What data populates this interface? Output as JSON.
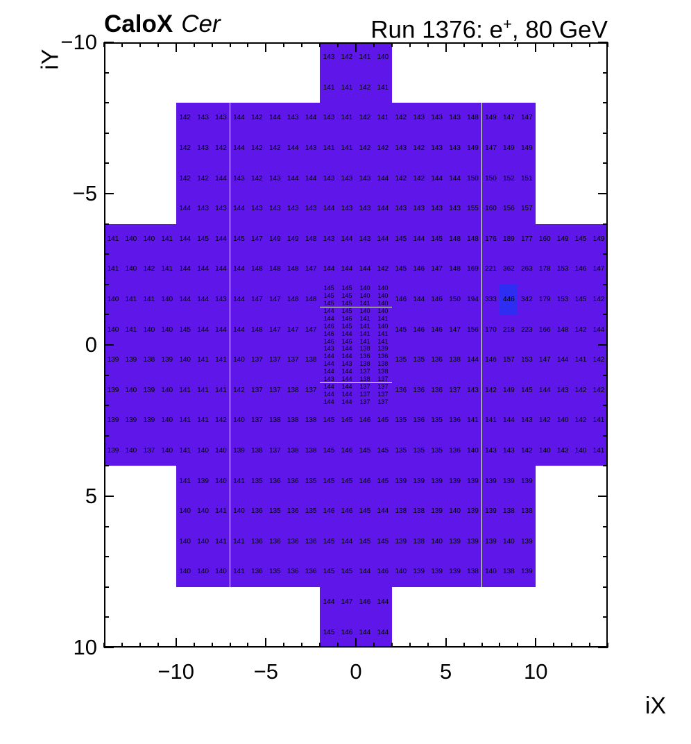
{
  "header": {
    "title_bold": "CaloX",
    "title_italic": "Cer",
    "run_prefix": "Run 1376: e",
    "run_sup": "+",
    "run_suffix": ", 80 GeV"
  },
  "chart_data": {
    "type": "heatmap",
    "title": "CaloX Cer",
    "subtitle": "Run 1376: e+, 80 GeV",
    "xlabel": "iX",
    "ylabel": "iY",
    "xlim": [
      -14,
      14
    ],
    "ylim": [
      -10,
      10
    ],
    "grid": false,
    "xticks": [
      -10,
      -5,
      0,
      5,
      10
    ],
    "yticks": [
      -10,
      -5,
      0,
      5,
      10
    ],
    "xtick_labels": [
      "−10",
      "−5",
      "0",
      "5",
      "10"
    ],
    "ytick_labels": [
      "10",
      "5",
      "0",
      "−5",
      "−10"
    ],
    "palette": {
      "base": "#5e17e8",
      "hot": "#2e2ef2",
      "hot_threshold": 400
    },
    "layers": [
      {
        "name": "top-cross",
        "x0": -2,
        "y_top": 10,
        "cell_w": 1,
        "cell_h": 1,
        "rows": [
          [
            143,
            142,
            141,
            140
          ],
          [
            141,
            141,
            142,
            141
          ]
        ]
      },
      {
        "name": "upper-block",
        "x0": -10,
        "y_top": 8,
        "cell_w": 1,
        "cell_h": 1,
        "rows": [
          [
            142,
            143,
            143,
            144,
            142,
            144,
            143,
            144,
            143,
            141,
            142,
            141,
            142,
            143,
            143,
            143,
            148,
            149,
            147,
            147
          ],
          [
            142,
            143,
            142,
            144,
            142,
            142,
            144,
            143,
            141,
            141,
            142,
            142,
            143,
            142,
            143,
            143,
            149,
            147,
            149,
            149
          ],
          [
            142,
            142,
            144,
            143,
            142,
            143,
            144,
            144,
            143,
            143,
            143,
            144,
            142,
            142,
            144,
            144,
            150,
            150,
            152,
            151
          ],
          [
            144,
            143,
            143,
            144,
            143,
            143,
            143,
            143,
            144,
            143,
            143,
            144,
            143,
            143,
            143,
            143,
            155,
            160,
            156,
            157
          ]
        ]
      },
      {
        "name": "upper-wide",
        "x0": -14,
        "y_top": 4,
        "cell_w": 1,
        "cell_h": 1,
        "rows": [
          [
            141,
            140,
            140,
            141,
            144,
            145,
            144,
            145,
            147,
            149,
            149,
            148,
            143,
            144,
            143,
            144,
            145,
            144,
            145,
            148,
            148,
            176,
            189,
            177,
            160,
            149,
            145,
            149
          ],
          [
            141,
            140,
            142,
            141,
            144,
            144,
            144,
            144,
            148,
            148,
            148,
            147,
            144,
            144,
            144,
            142,
            145,
            146,
            147,
            148,
            169,
            221,
            362,
            263,
            178,
            153,
            146,
            147
          ]
        ]
      },
      {
        "name": "mid-left",
        "x0": -14,
        "y_top": 2,
        "cell_w": 1,
        "cell_h": 1,
        "rows": [
          [
            140,
            141,
            141,
            140,
            144,
            144,
            143,
            144,
            147,
            147,
            148,
            148
          ],
          [
            140,
            141,
            140,
            140,
            145,
            144,
            144,
            144,
            148,
            147,
            147,
            147
          ],
          [
            139,
            139,
            138,
            139,
            140,
            141,
            141,
            140,
            137,
            137,
            137,
            138
          ],
          [
            139,
            140,
            139,
            140,
            141,
            141,
            141,
            142,
            137,
            137,
            138,
            137
          ]
        ]
      },
      {
        "name": "center-fine",
        "x0": -2,
        "y_top": 2,
        "cell_w": 1,
        "cell_h": 0.25,
        "rows": [
          [
            145,
            145,
            140,
            140
          ],
          [
            145,
            145,
            140,
            140
          ],
          [
            145,
            145,
            141,
            140
          ],
          [
            144,
            145,
            140,
            140
          ],
          [
            144,
            146,
            141,
            141
          ],
          [
            146,
            145,
            141,
            140
          ],
          [
            146,
            144,
            141,
            141
          ],
          [
            146,
            146,
            141,
            141
          ],
          [
            143,
            144,
            138,
            139
          ],
          [
            144,
            144,
            136,
            136
          ],
          [
            144,
            143,
            138,
            138
          ],
          [
            144,
            144,
            137,
            138
          ],
          [
            143,
            144,
            138,
            137
          ],
          [
            144,
            144,
            137,
            137
          ],
          [
            144,
            144,
            137,
            137
          ],
          [
            144,
            144,
            137,
            137
          ]
        ]
      },
      {
        "name": "mid-right",
        "x0": 2,
        "y_top": 2,
        "cell_w": 1,
        "cell_h": 1,
        "rows": [
          [
            146,
            144,
            146,
            150,
            194,
            333,
            446,
            342,
            179,
            153,
            145,
            142
          ],
          [
            145,
            146,
            146,
            147,
            156,
            170,
            218,
            223,
            166,
            148,
            142,
            144
          ],
          [
            135,
            135,
            136,
            138,
            144,
            146,
            157,
            153,
            147,
            144,
            141,
            142
          ],
          [
            136,
            136,
            136,
            137,
            143,
            142,
            149,
            145,
            144,
            143,
            142,
            142
          ]
        ]
      },
      {
        "name": "lower-wide",
        "x0": -14,
        "y_top": -2,
        "cell_w": 1,
        "cell_h": 1,
        "rows": [
          [
            139,
            139,
            139,
            140,
            141,
            141,
            142,
            140,
            137,
            138,
            138,
            138,
            145,
            145,
            146,
            145,
            135,
            136,
            135,
            136,
            141,
            141,
            144,
            143,
            142,
            140,
            142,
            141
          ],
          [
            139,
            140,
            137,
            140,
            141,
            140,
            140,
            139,
            138,
            137,
            138,
            138,
            145,
            146,
            145,
            145,
            135,
            135,
            135,
            136,
            140,
            143,
            143,
            142,
            140,
            143,
            140,
            141
          ]
        ]
      },
      {
        "name": "lower-block",
        "x0": -10,
        "y_top": -4,
        "cell_w": 1,
        "cell_h": 1,
        "rows": [
          [
            141,
            139,
            140,
            141,
            135,
            136,
            136,
            135,
            145,
            145,
            146,
            145,
            139,
            139,
            139,
            139,
            139,
            139,
            139,
            139
          ],
          [
            140,
            140,
            141,
            140,
            136,
            135,
            136,
            135,
            146,
            146,
            145,
            144,
            138,
            138,
            139,
            140,
            139,
            139,
            138,
            138
          ],
          [
            140,
            140,
            141,
            141,
            136,
            136,
            136,
            136,
            145,
            144,
            145,
            145,
            139,
            138,
            140,
            139,
            139,
            139,
            140,
            139
          ],
          [
            140,
            140,
            140,
            141,
            136,
            135,
            136,
            136,
            145,
            145,
            144,
            146,
            140,
            139,
            139,
            139,
            138,
            140,
            138,
            139
          ]
        ]
      },
      {
        "name": "bottom-cross",
        "x0": -2,
        "y_top": -8,
        "cell_w": 1,
        "cell_h": 1,
        "rows": [
          [
            144,
            147,
            146,
            144
          ],
          [
            145,
            146,
            144,
            144
          ]
        ]
      }
    ]
  }
}
